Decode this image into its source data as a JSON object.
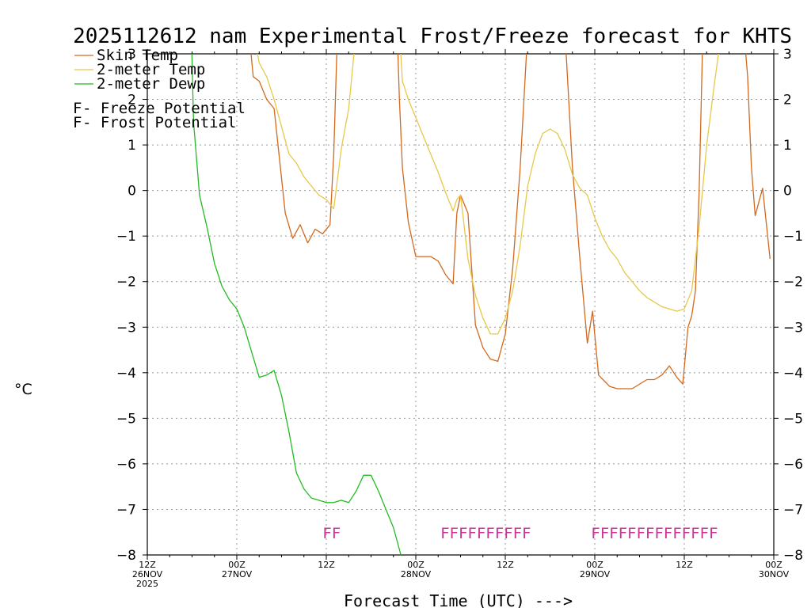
{
  "chart_data": {
    "type": "line",
    "title": "2025112612 nam Experimental Frost/Freeze forecast for KHTS",
    "ylabel": "°C",
    "xlabel": "Forecast Time (UTC) --->",
    "ylim": [
      -8,
      3
    ],
    "xlim": [
      0,
      84
    ],
    "grid": true,
    "y_ticks": [
      3,
      2,
      1,
      0,
      -1,
      -2,
      -3,
      -4,
      -5,
      -6,
      -7,
      -8
    ],
    "y_tick_labels": [
      "3",
      "2",
      "1",
      "0",
      "−1",
      "−2",
      "−3",
      "−4",
      "−5",
      "−6",
      "−7",
      "−8"
    ],
    "x_ticks": [
      {
        "hour": 0,
        "lines": [
          "12Z",
          "26NOV",
          "2025"
        ]
      },
      {
        "hour": 12,
        "lines": [
          "00Z",
          "27NOV"
        ]
      },
      {
        "hour": 24,
        "lines": [
          "12Z"
        ]
      },
      {
        "hour": 36,
        "lines": [
          "00Z",
          "28NOV"
        ]
      },
      {
        "hour": 48,
        "lines": [
          "12Z"
        ]
      },
      {
        "hour": 60,
        "lines": [
          "00Z",
          "29NOV"
        ]
      },
      {
        "hour": 72,
        "lines": [
          "12Z"
        ]
      },
      {
        "hour": 84,
        "lines": [
          "00Z",
          "30NOV"
        ]
      }
    ],
    "legend": {
      "placement": "top-left",
      "series_entries": [
        "Skin Temp",
        "2-meter Temp",
        "2-meter Dewp"
      ],
      "marker_letter": "F",
      "marker_entries": [
        {
          "text": " - Freeze Potential",
          "color": "#cc3399"
        },
        {
          "text": " - Frost Potential",
          "color": "#5555dd"
        }
      ]
    },
    "series": [
      {
        "name": "Skin Temp",
        "color": "#d2691e",
        "points": [
          [
            13.8,
            3.2
          ],
          [
            14.2,
            2.5
          ],
          [
            15,
            2.4
          ],
          [
            16,
            2.0
          ],
          [
            17,
            1.8
          ],
          [
            18.5,
            -0.5
          ],
          [
            19.5,
            -1.05
          ],
          [
            20.5,
            -0.75
          ],
          [
            21.5,
            -1.15
          ],
          [
            22.5,
            -0.85
          ],
          [
            23.5,
            -0.95
          ],
          [
            24.5,
            -0.75
          ],
          [
            25,
            0.8
          ],
          [
            25.5,
            3.5
          ],
          [
            33.5,
            3.5
          ],
          [
            33.8,
            2.0
          ],
          [
            34.2,
            0.5
          ],
          [
            35,
            -0.7
          ],
          [
            36,
            -1.45
          ],
          [
            38,
            -1.45
          ],
          [
            39,
            -1.55
          ],
          [
            40,
            -1.85
          ],
          [
            41,
            -2.05
          ],
          [
            41.5,
            -0.5
          ],
          [
            42,
            -0.1
          ],
          [
            43,
            -0.5
          ],
          [
            44,
            -2.95
          ],
          [
            45,
            -3.45
          ],
          [
            46,
            -3.7
          ],
          [
            47,
            -3.75
          ],
          [
            48,
            -3.15
          ],
          [
            49,
            -1.7
          ],
          [
            50,
            0.5
          ],
          [
            51,
            3.5
          ],
          [
            56,
            3.5
          ],
          [
            57,
            0.5
          ],
          [
            58,
            -1.5
          ],
          [
            59,
            -3.35
          ],
          [
            59.7,
            -2.65
          ],
          [
            60.5,
            -4.05
          ],
          [
            62,
            -4.3
          ],
          [
            63,
            -4.35
          ],
          [
            65,
            -4.35
          ],
          [
            67,
            -4.15
          ],
          [
            68,
            -4.15
          ],
          [
            69,
            -4.05
          ],
          [
            70,
            -3.85
          ],
          [
            71,
            -4.1
          ],
          [
            71.8,
            -4.25
          ],
          [
            72.5,
            -3.0
          ],
          [
            73,
            -2.75
          ],
          [
            73.5,
            -2.2
          ],
          [
            74,
            0.0
          ],
          [
            74.5,
            3.5
          ],
          [
            80,
            3.5
          ],
          [
            80.5,
            2.5
          ],
          [
            81,
            0.5
          ],
          [
            81.5,
            -0.55
          ],
          [
            82.5,
            0.05
          ],
          [
            83.5,
            -1.5
          ]
        ]
      },
      {
        "name": "2-meter Temp",
        "color": "#e6c84a",
        "points": [
          [
            14.2,
            3.5
          ],
          [
            15,
            2.8
          ],
          [
            16,
            2.5
          ],
          [
            17,
            2.0
          ],
          [
            18,
            1.4
          ],
          [
            19,
            0.8
          ],
          [
            20,
            0.6
          ],
          [
            21,
            0.3
          ],
          [
            22,
            0.1
          ],
          [
            23,
            -0.1
          ],
          [
            24,
            -0.2
          ],
          [
            25,
            -0.4
          ],
          [
            26,
            0.9
          ],
          [
            27,
            1.8
          ],
          [
            28,
            3.5
          ],
          [
            33.8,
            3.5
          ],
          [
            34.2,
            2.4
          ],
          [
            35,
            2.0
          ],
          [
            36,
            1.6
          ],
          [
            37,
            1.2
          ],
          [
            38,
            0.8
          ],
          [
            39,
            0.4
          ],
          [
            40,
            -0.05
          ],
          [
            41,
            -0.45
          ],
          [
            41.5,
            -0.2
          ],
          [
            42,
            -0.1
          ],
          [
            43,
            -1.5
          ],
          [
            44,
            -2.3
          ],
          [
            45,
            -2.8
          ],
          [
            46,
            -3.15
          ],
          [
            47,
            -3.15
          ],
          [
            48,
            -2.8
          ],
          [
            49,
            -2.2
          ],
          [
            50,
            -1.2
          ],
          [
            51,
            0.1
          ],
          [
            52,
            0.8
          ],
          [
            53,
            1.25
          ],
          [
            54,
            1.35
          ],
          [
            55,
            1.25
          ],
          [
            56,
            0.9
          ],
          [
            57,
            0.35
          ],
          [
            58,
            0.05
          ],
          [
            59,
            -0.1
          ],
          [
            60,
            -0.6
          ],
          [
            61,
            -1.0
          ],
          [
            62,
            -1.3
          ],
          [
            63,
            -1.5
          ],
          [
            64,
            -1.8
          ],
          [
            65,
            -2.0
          ],
          [
            66,
            -2.2
          ],
          [
            67,
            -2.35
          ],
          [
            68,
            -2.45
          ],
          [
            69,
            -2.55
          ],
          [
            70,
            -2.6
          ],
          [
            71,
            -2.65
          ],
          [
            72,
            -2.6
          ],
          [
            73,
            -2.2
          ],
          [
            74,
            -0.8
          ],
          [
            75,
            1.0
          ],
          [
            76,
            2.3
          ],
          [
            77,
            3.5
          ]
        ]
      },
      {
        "name": "2-meter Dewp",
        "color": "#22bb22",
        "points": [
          [
            5.9,
            3.5
          ],
          [
            6.2,
            1.5
          ],
          [
            7,
            -0.1
          ],
          [
            8,
            -0.8
          ],
          [
            9,
            -1.6
          ],
          [
            10,
            -2.1
          ],
          [
            11,
            -2.4
          ],
          [
            12,
            -2.6
          ],
          [
            13,
            -3.0
          ],
          [
            14,
            -3.55
          ],
          [
            15,
            -4.1
          ],
          [
            16,
            -4.05
          ],
          [
            17,
            -3.95
          ],
          [
            18,
            -4.5
          ],
          [
            19,
            -5.3
          ],
          [
            20,
            -6.2
          ],
          [
            21,
            -6.55
          ],
          [
            22,
            -6.75
          ],
          [
            23,
            -6.8
          ],
          [
            24,
            -6.85
          ],
          [
            25,
            -6.85
          ],
          [
            26,
            -6.8
          ],
          [
            27,
            -6.85
          ],
          [
            28,
            -6.6
          ],
          [
            29,
            -6.25
          ],
          [
            30,
            -6.25
          ],
          [
            31,
            -6.6
          ],
          [
            32,
            -7.0
          ],
          [
            33,
            -7.4
          ],
          [
            34,
            -8.0
          ]
        ]
      }
    ],
    "freeze_flags": [
      {
        "start": 23.5,
        "count": 2
      },
      {
        "start": 39.3,
        "count": 10
      },
      {
        "start": 59.5,
        "count": 14
      }
    ]
  }
}
